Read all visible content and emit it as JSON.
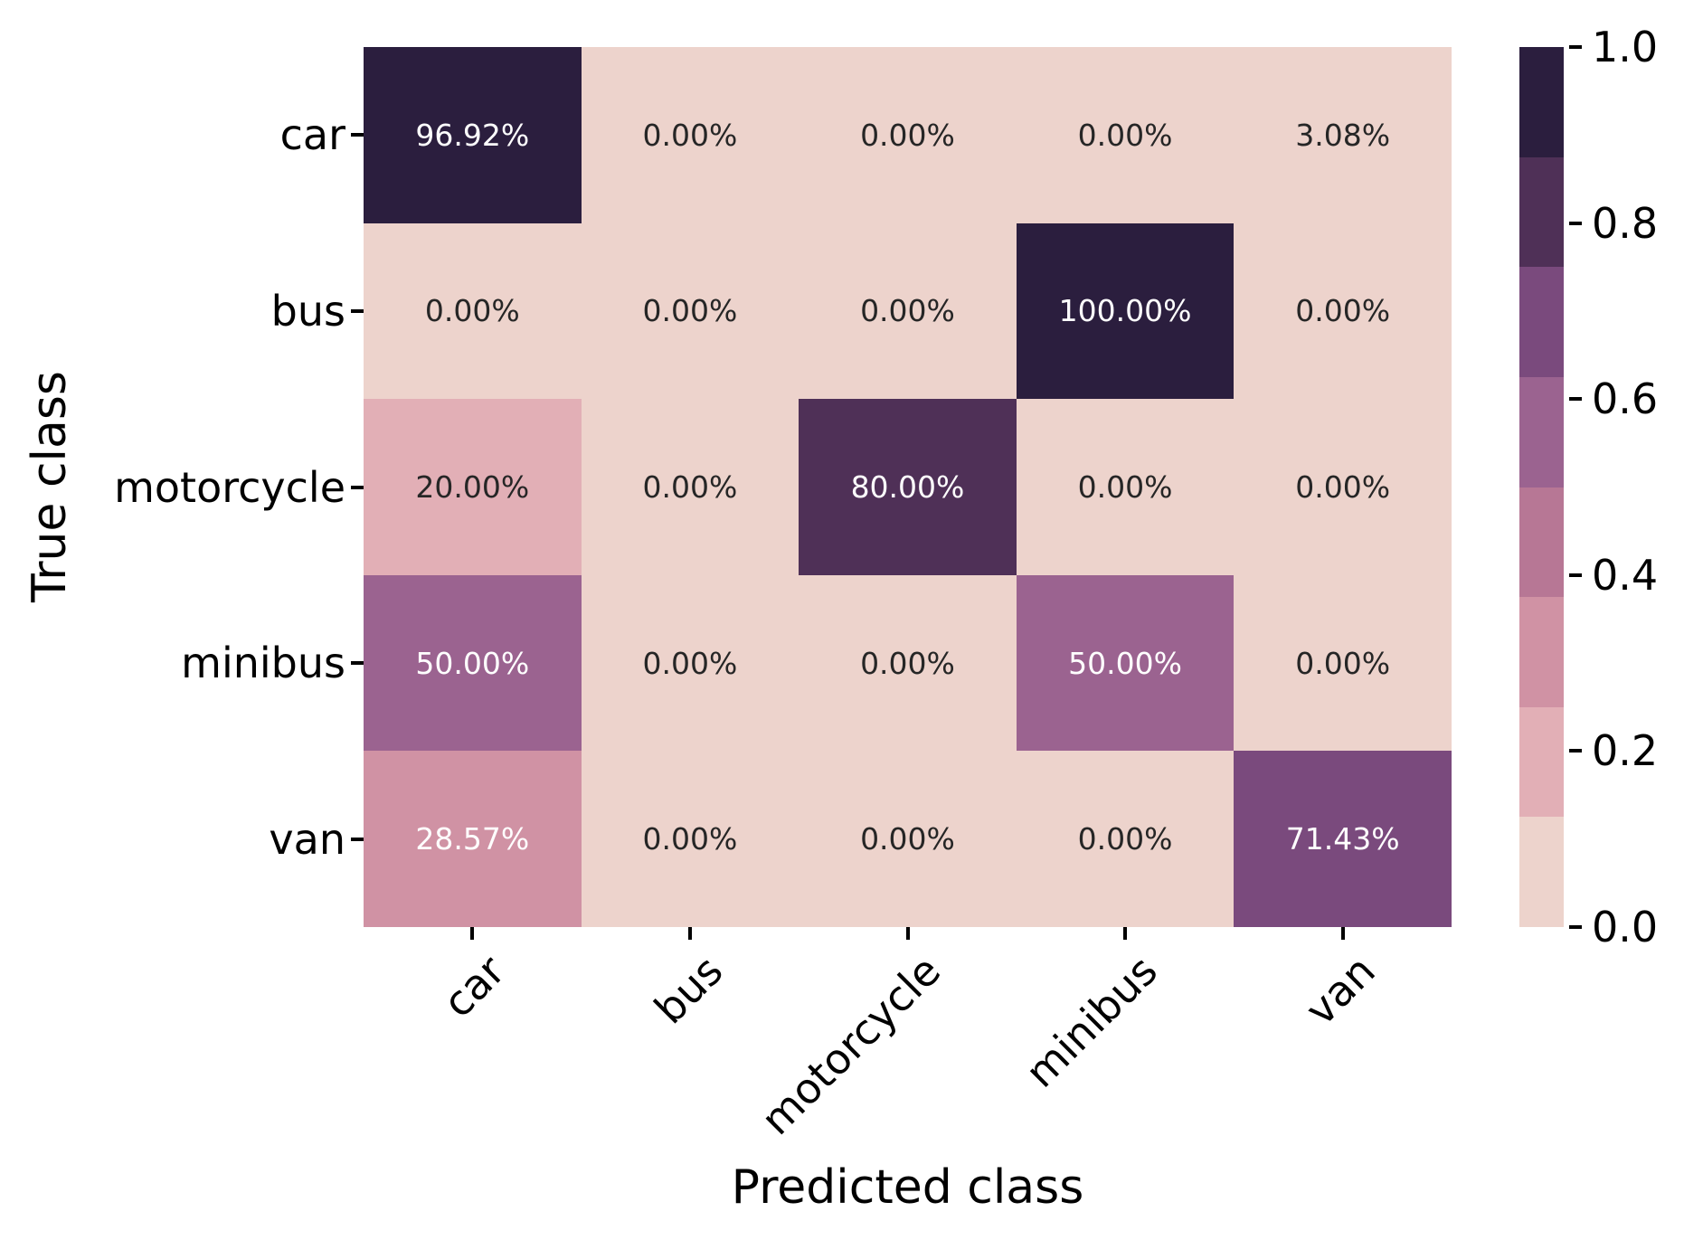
{
  "chart_data": {
    "type": "heatmap",
    "title": "",
    "xlabel": "Predicted class",
    "ylabel": "True class",
    "x_tick_labels": [
      "car",
      "bus",
      "motorcycle",
      "minibus",
      "van"
    ],
    "y_tick_labels": [
      "car",
      "bus",
      "motorcycle",
      "minibus",
      "van"
    ],
    "values": [
      [
        0.9692,
        0.0,
        0.0,
        0.0,
        0.0308
      ],
      [
        0.0,
        0.0,
        0.0,
        1.0,
        0.0
      ],
      [
        0.2,
        0.0,
        0.8,
        0.0,
        0.0
      ],
      [
        0.5,
        0.0,
        0.0,
        0.5,
        0.0
      ],
      [
        0.2857,
        0.0,
        0.0,
        0.0,
        0.7143
      ]
    ],
    "cell_labels": [
      [
        "96.92%",
        "0.00%",
        "0.00%",
        "0.00%",
        "3.08%"
      ],
      [
        "0.00%",
        "0.00%",
        "0.00%",
        "100.00%",
        "0.00%"
      ],
      [
        "20.00%",
        "0.00%",
        "80.00%",
        "0.00%",
        "0.00%"
      ],
      [
        "50.00%",
        "0.00%",
        "0.00%",
        "50.00%",
        "0.00%"
      ],
      [
        "28.57%",
        "0.00%",
        "0.00%",
        "0.00%",
        "71.43%"
      ]
    ],
    "vlim": [
      0,
      1
    ],
    "grid": false,
    "legend_position": "right-colorbar",
    "colorbar_tick_labels": [
      "1.0",
      "0.8",
      "0.6",
      "0.4",
      "0.2",
      "0.0"
    ],
    "colorbar_tick_values": [
      1.0,
      0.8,
      0.6,
      0.4,
      0.2,
      0.0
    ],
    "palette_bins_low_to_high": [
      "#edd3cc",
      "#e2afb6",
      "#d092a4",
      "#b77795",
      "#9b6390",
      "#7a4a7d",
      "#4f3057",
      "#2b1e3e"
    ],
    "colors": {
      "annotation_text_dark": "#262626",
      "annotation_text_light": "#ffffff",
      "axis_text": "#000000",
      "background": "#ffffff"
    }
  }
}
